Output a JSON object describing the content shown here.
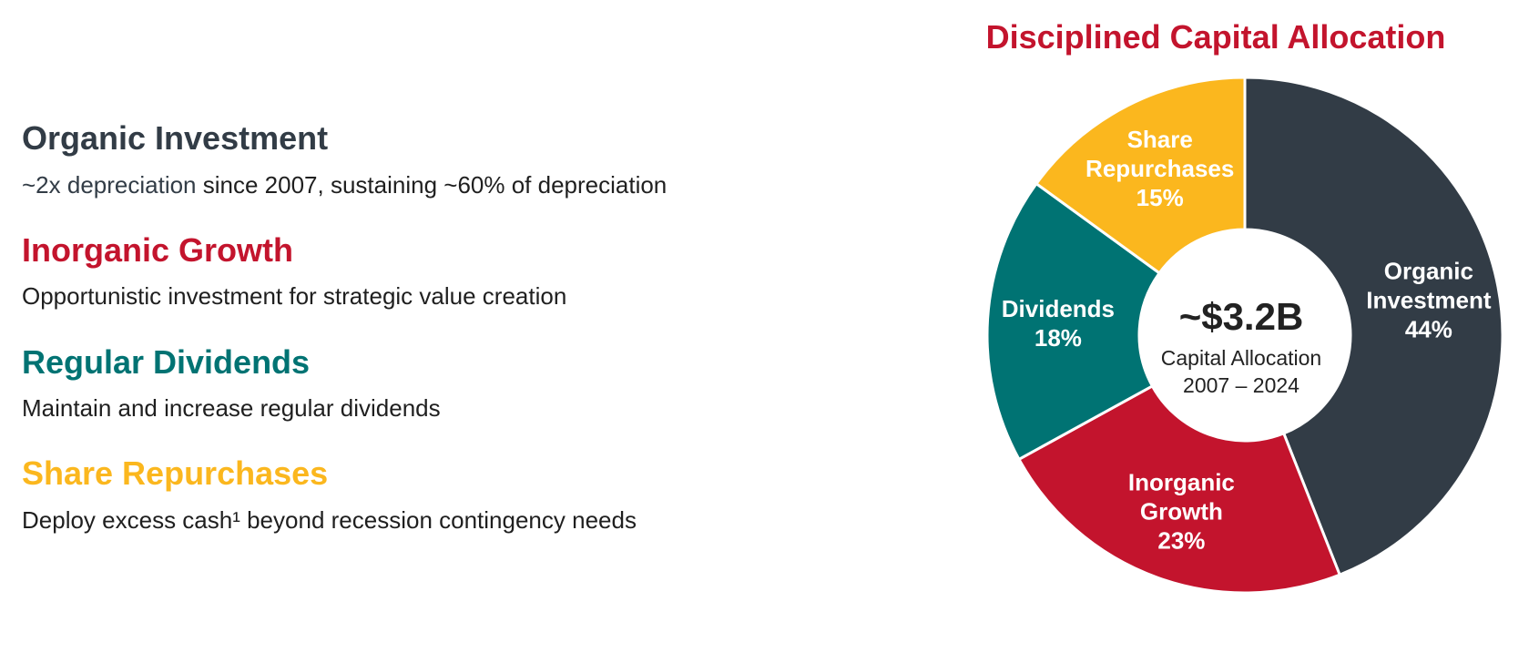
{
  "sections": [
    {
      "title": "Organic Investment",
      "description_highlight": "~2x depreciation",
      "description": " since 2007, sustaining ~60% of depreciation"
    },
    {
      "title": "Inorganic Growth",
      "description": "Opportunistic investment for strategic value creation"
    },
    {
      "title": "Regular Dividends",
      "description": "Maintain and increase regular dividends"
    },
    {
      "title": "Share Repurchases",
      "description": "Deploy excess cash¹ beyond recession contingency needs"
    }
  ],
  "chart_data": {
    "type": "pie",
    "title": "Disciplined Capital Allocation",
    "center_value": "~$3.2B",
    "center_line1": "Capital Allocation",
    "center_line2": "2007 – 2024",
    "slices": [
      {
        "label_lines": [
          "Organic",
          "Investment"
        ],
        "value": 44,
        "value_label": "44%",
        "color": "#323c46"
      },
      {
        "label_lines": [
          "Inorganic",
          "Growth"
        ],
        "value": 23,
        "value_label": "23%",
        "color": "#c3142d"
      },
      {
        "label_lines": [
          "Dividends"
        ],
        "value": 18,
        "value_label": "18%",
        "color": "#007373"
      },
      {
        "label_lines": [
          "Share",
          "Repurchases"
        ],
        "value": 15,
        "value_label": "15%",
        "color": "#fbb71e"
      }
    ]
  }
}
